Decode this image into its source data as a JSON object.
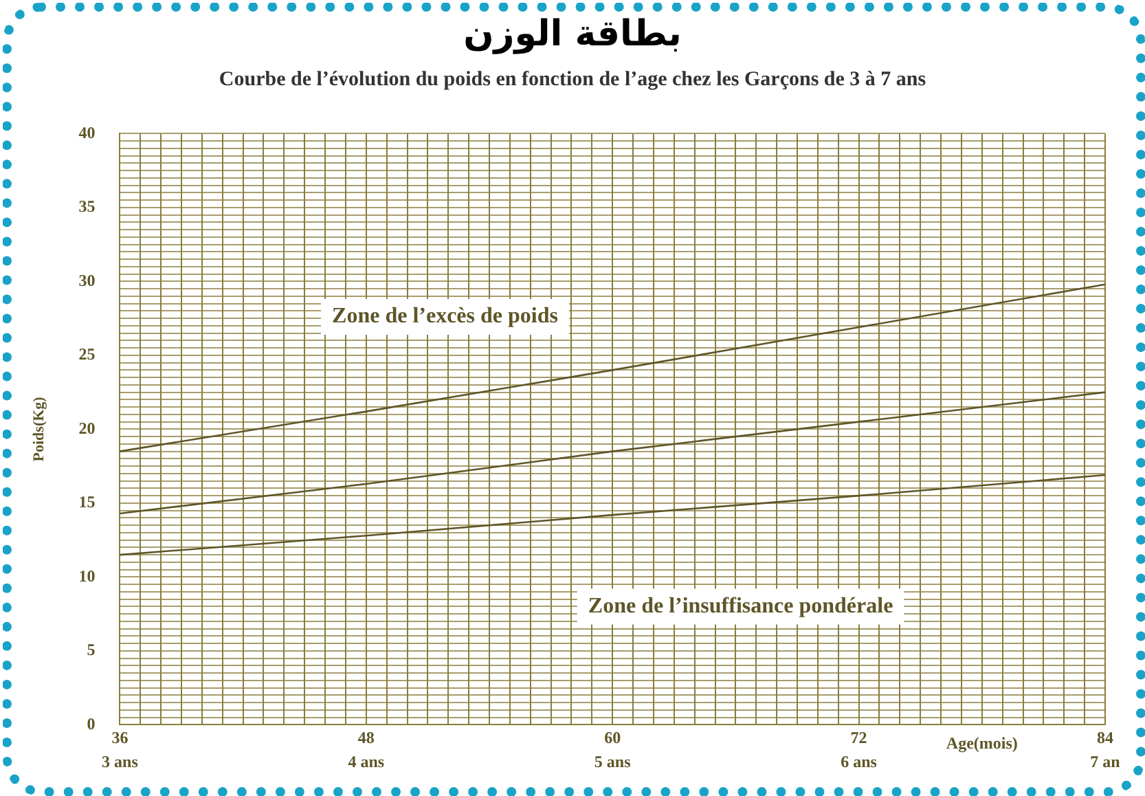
{
  "chart_data": {
    "type": "line",
    "title": "بطاقة الوزن",
    "subtitle": "Courbe de l’évolution du poids en fonction de l’age chez les Garçons de 3 à 7 ans",
    "xlabel": "Age(mois)",
    "ylabel": "Poids(Kg)",
    "x": [
      36,
      48,
      60,
      72,
      84
    ],
    "series": [
      {
        "color": "#5e5628",
        "values": [
          18.5,
          21.2,
          24.0,
          26.9,
          29.8
        ]
      },
      {
        "color": "#5e5628",
        "values": [
          14.3,
          16.3,
          18.5,
          20.5,
          22.5
        ]
      },
      {
        "color": "#5e5628",
        "values": [
          11.5,
          12.8,
          14.2,
          15.5,
          16.9
        ]
      }
    ],
    "annotations": [
      "Zone de l’excès de poids",
      "Zone de l’insuffisance pondérale"
    ],
    "xlim": [
      36,
      84
    ],
    "ylim": [
      0,
      40
    ],
    "x2lim": [
      3,
      7
    ],
    "x2ticks": [
      {
        "value": 3,
        "label": "3 ans"
      },
      {
        "value": 4,
        "label": "4 ans"
      },
      {
        "value": 5,
        "label": "5 ans"
      },
      {
        "value": 6,
        "label": "6 ans"
      },
      {
        "value": 7,
        "label": "7 an"
      }
    ],
    "xticks": [
      36,
      {
        "value": 37,
        "label": null
      },
      {
        "value": 38,
        "label": null
      },
      {
        "value": 39,
        "label": null
      },
      {
        "value": 40,
        "label": null
      },
      {
        "value": 41,
        "label": null
      },
      {
        "value": 42,
        "label": null
      },
      {
        "value": 43,
        "label": null
      },
      {
        "value": 44,
        "label": null
      },
      {
        "value": 45,
        "label": null
      },
      {
        "value": 46,
        "label": null
      },
      {
        "value": 47,
        "label": null
      },
      48,
      {
        "value": 49,
        "label": null
      },
      {
        "value": 50,
        "label": null
      },
      {
        "value": 51,
        "label": null
      },
      {
        "value": 52,
        "label": null
      },
      {
        "value": 53,
        "label": null
      },
      {
        "value": 54,
        "label": null
      },
      {
        "value": 55,
        "label": null
      },
      {
        "value": 56,
        "label": null
      },
      {
        "value": 57,
        "label": null
      },
      {
        "value": 58,
        "label": null
      },
      {
        "value": 59,
        "label": null
      },
      60,
      {
        "value": 61,
        "label": null
      },
      {
        "value": 62,
        "label": null
      },
      {
        "value": 63,
        "label": null
      },
      {
        "value": 64,
        "label": null
      },
      {
        "value": 65,
        "label": null
      },
      {
        "value": 66,
        "label": null
      },
      {
        "value": 67,
        "label": null
      },
      {
        "value": 68,
        "label": null
      },
      {
        "value": 69,
        "label": null
      },
      {
        "value": 70,
        "label": null
      },
      {
        "value": 71,
        "label": null
      },
      72,
      {
        "value": 73,
        "label": null
      },
      {
        "value": 74,
        "label": null
      },
      {
        "value": 75,
        "label": null
      },
      {
        "value": 76,
        "label": null
      },
      {
        "value": 77,
        "label": null
      },
      {
        "value": 78,
        "label": null
      },
      {
        "value": 79,
        "label": null
      },
      {
        "value": 80,
        "label": null
      },
      {
        "value": 81,
        "label": null
      },
      {
        "value": 82,
        "label": null
      },
      {
        "value": 83,
        "label": null
      },
      84
    ],
    "yticks": [
      0,
      {
        "value": 0.5,
        "label": null
      },
      {
        "value": 1,
        "label": null
      },
      {
        "value": 1.5,
        "label": null
      },
      {
        "value": 2,
        "label": null
      },
      {
        "value": 2.5,
        "label": null
      },
      {
        "value": 3,
        "label": null
      },
      {
        "value": 3.5,
        "label": null
      },
      {
        "value": 4,
        "label": null
      },
      {
        "value": 4.5,
        "label": null
      },
      5,
      {
        "value": 5.5,
        "label": null
      },
      {
        "value": 6,
        "label": null
      },
      {
        "value": 6.5,
        "label": null
      },
      {
        "value": 7,
        "label": null
      },
      {
        "value": 7.5,
        "label": null
      },
      {
        "value": 8,
        "label": null
      },
      {
        "value": 8.5,
        "label": null
      },
      {
        "value": 9,
        "label": null
      },
      {
        "value": 9.5,
        "label": null
      },
      10,
      {
        "value": 10.5,
        "label": null
      },
      {
        "value": 11,
        "label": null
      },
      {
        "value": 11.5,
        "label": null
      },
      {
        "value": 12,
        "label": null
      },
      {
        "value": 12.5,
        "label": null
      },
      {
        "value": 13,
        "label": null
      },
      {
        "value": 13.5,
        "label": null
      },
      {
        "value": 14,
        "label": null
      },
      {
        "value": 14.5,
        "label": null
      },
      15,
      {
        "value": 15.5,
        "label": null
      },
      {
        "value": 16,
        "label": null
      },
      {
        "value": 16.5,
        "label": null
      },
      {
        "value": 17,
        "label": null
      },
      {
        "value": 17.5,
        "label": null
      },
      {
        "value": 18,
        "label": null
      },
      {
        "value": 18.5,
        "label": null
      },
      {
        "value": 19,
        "label": null
      },
      {
        "value": 19.5,
        "label": null
      },
      20,
      {
        "value": 20.5,
        "label": null
      },
      {
        "value": 21,
        "label": null
      },
      {
        "value": 21.5,
        "label": null
      },
      {
        "value": 22,
        "label": null
      },
      {
        "value": 22.5,
        "label": null
      },
      {
        "value": 23,
        "label": null
      },
      {
        "value": 23.5,
        "label": null
      },
      {
        "value": 24,
        "label": null
      },
      {
        "value": 24.5,
        "label": null
      },
      25,
      {
        "value": 25.5,
        "label": null
      },
      {
        "value": 26,
        "label": null
      },
      {
        "value": 26.5,
        "label": null
      },
      {
        "value": 27,
        "label": null
      },
      {
        "value": 27.5,
        "label": null
      },
      {
        "value": 28,
        "label": null
      },
      {
        "value": 28.5,
        "label": null
      },
      {
        "value": 29,
        "label": null
      },
      {
        "value": 29.5,
        "label": null
      },
      30,
      {
        "value": 30.5,
        "label": null
      },
      {
        "value": 31,
        "label": null
      },
      {
        "value": 31.5,
        "label": null
      },
      {
        "value": 32,
        "label": null
      },
      {
        "value": 32.5,
        "label": null
      },
      {
        "value": 33,
        "label": null
      },
      {
        "value": 33.5,
        "label": null
      },
      {
        "value": 34,
        "label": null
      },
      {
        "value": 34.5,
        "label": null
      },
      35,
      {
        "value": 35.5,
        "label": null
      },
      {
        "value": 36,
        "label": null
      },
      {
        "value": 36.5,
        "label": null
      },
      {
        "value": 37,
        "label": null
      },
      {
        "value": 37.5,
        "label": null
      },
      {
        "value": 38,
        "label": null
      },
      {
        "value": 38.5,
        "label": null
      },
      {
        "value": 39,
        "label": null
      },
      {
        "value": 39.5,
        "label": null
      },
      40
    ],
    "grid": true,
    "legend": false,
    "marker": "none",
    "line_style": "solid"
  }
}
